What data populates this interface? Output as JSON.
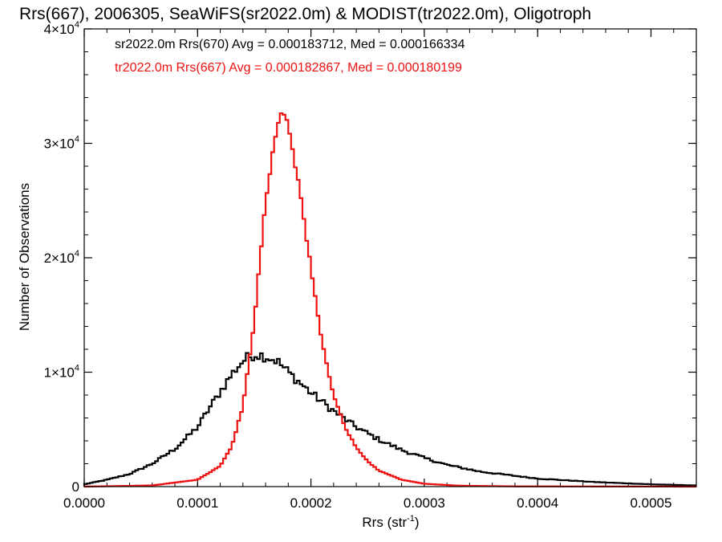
{
  "chart_data": {
    "type": "histogram-step",
    "title": "Rrs(667), 2006305, SeaWiFS(sr2022.0m) & MODIST(tr2022.0m), Oligotroph",
    "xlabel": "Rrs (str",
    "xlabel_exp": "-1",
    "xlabel_close": ")",
    "ylabel": "Number of Observations",
    "xlim": [
      0.0,
      0.00054
    ],
    "ylim": [
      0,
      40000
    ],
    "x_ticks": [
      {
        "value": 0.0,
        "label": "0.0000"
      },
      {
        "value": 0.0001,
        "label": "0.0001"
      },
      {
        "value": 0.0002,
        "label": "0.0002"
      },
      {
        "value": 0.0003,
        "label": "0.0003"
      },
      {
        "value": 0.0004,
        "label": "0.0004"
      },
      {
        "value": 0.0005,
        "label": "0.0005"
      }
    ],
    "y_ticks": [
      {
        "value": 0,
        "label": "0",
        "exp": ""
      },
      {
        "value": 10000,
        "label": "1×10",
        "exp": "4"
      },
      {
        "value": 20000,
        "label": "2×10",
        "exp": "4"
      },
      {
        "value": 30000,
        "label": "3×10",
        "exp": "4"
      },
      {
        "value": 40000,
        "label": "4×10",
        "exp": "4"
      }
    ],
    "series": [
      {
        "name": "sr2022.0m Rrs(670)",
        "legend": "sr2022.0m Rrs(670) Avg = 0.000183712, Med = 0.000166334",
        "color": "#000000",
        "x": [
          0.0,
          2e-05,
          4e-05,
          6e-05,
          8e-05,
          0.0001,
          0.00011,
          0.00012,
          0.00013,
          0.00014,
          0.00015,
          0.00016,
          0.00017,
          0.00018,
          0.0002,
          0.00022,
          0.00024,
          0.00026,
          0.00028,
          0.0003,
          0.00032,
          0.00035,
          0.0004,
          0.00045,
          0.0005,
          0.00054
        ],
        "y": [
          200,
          600,
          1100,
          2000,
          3300,
          5200,
          6800,
          8300,
          9800,
          11000,
          11600,
          11400,
          11000,
          10000,
          8200,
          6600,
          5200,
          4100,
          3200,
          2500,
          1900,
          1300,
          700,
          400,
          200,
          100
        ]
      },
      {
        "name": "tr2022.0m Rrs(667)",
        "legend": "tr2022.0m Rrs(667) Avg = 0.000182867, Med = 0.000180199",
        "color": "#ee1111",
        "x": [
          0.0,
          6e-05,
          0.0001,
          0.00012,
          0.00013,
          0.00014,
          0.00015,
          0.00016,
          0.00017,
          0.000175,
          0.00018,
          0.00019,
          0.0002,
          0.00021,
          0.00022,
          0.00023,
          0.00024,
          0.00025,
          0.00026,
          0.00028,
          0.0003,
          0.00033,
          0.00038,
          0.00054
        ],
        "y": [
          0,
          100,
          600,
          1800,
          3500,
          7000,
          14500,
          25000,
          31500,
          33000,
          31800,
          26000,
          19000,
          12500,
          8000,
          5200,
          3400,
          2200,
          1400,
          600,
          250,
          80,
          20,
          0
        ]
      }
    ],
    "grid": false,
    "legend_position": "top-left"
  }
}
